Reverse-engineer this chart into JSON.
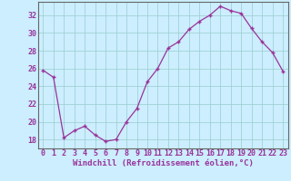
{
  "x": [
    0,
    1,
    2,
    3,
    4,
    5,
    6,
    7,
    8,
    9,
    10,
    11,
    12,
    13,
    14,
    15,
    16,
    17,
    18,
    19,
    20,
    21,
    22,
    23
  ],
  "y": [
    25.8,
    25.0,
    18.2,
    19.0,
    19.5,
    18.5,
    17.8,
    18.0,
    20.0,
    21.5,
    24.5,
    26.0,
    28.3,
    29.0,
    30.4,
    31.3,
    32.0,
    33.0,
    32.5,
    32.2,
    30.5,
    29.0,
    27.8,
    25.7
  ],
  "line_color": "#993399",
  "marker_color": "#993399",
  "bg_color": "#cceeff",
  "grid_color": "#99cccc",
  "xlabel": "Windchill (Refroidissement éolien,°C)",
  "ylim": [
    17,
    33.5
  ],
  "yticks": [
    18,
    20,
    22,
    24,
    26,
    28,
    30,
    32
  ],
  "xticks": [
    0,
    1,
    2,
    3,
    4,
    5,
    6,
    7,
    8,
    9,
    10,
    11,
    12,
    13,
    14,
    15,
    16,
    17,
    18,
    19,
    20,
    21,
    22,
    23
  ],
  "xlabel_fontsize": 6.5,
  "tick_fontsize": 6.0
}
